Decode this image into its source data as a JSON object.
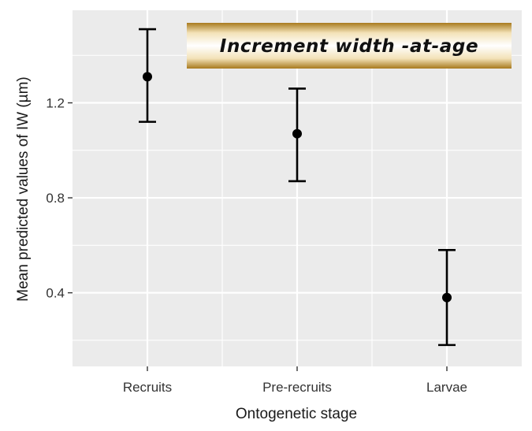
{
  "chart_data": {
    "type": "errorbar",
    "title": "Increment width -at-age",
    "xlabel": "Ontogenetic stage",
    "ylabel": "Mean predicted values of IW  (µm)",
    "categories": [
      "Recruits",
      "Pre-recruits",
      "Larvae"
    ],
    "series": [
      {
        "values": [
          1.31,
          1.07,
          0.38
        ],
        "lower": [
          1.12,
          0.87,
          0.18
        ],
        "upper": [
          1.51,
          1.26,
          0.58
        ]
      }
    ],
    "ylim": [
      0.09,
      1.59
    ],
    "yticks": [
      0.4,
      0.8,
      1.2
    ],
    "ytick_labels": [
      "0.4",
      "0.8",
      "1.2"
    ],
    "grid": true,
    "colors": {
      "panel_background": "#ebebeb",
      "gridline": "#ffffff",
      "marker": "#000000",
      "banner_gradient": [
        "#a87a1e",
        "#f3e2b8",
        "#ffffff",
        "#f3e2b8",
        "#a87a1e"
      ]
    }
  }
}
